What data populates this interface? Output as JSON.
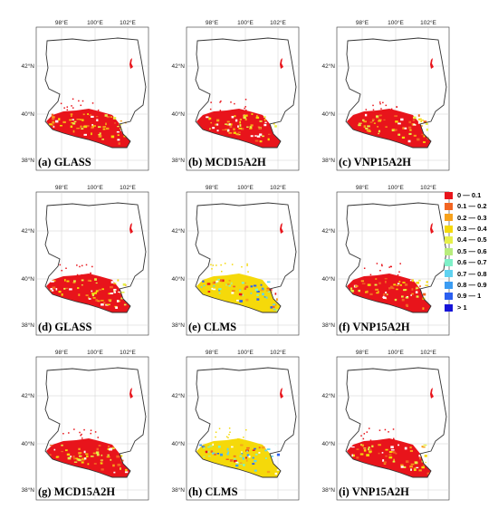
{
  "axes": {
    "lon_ticks": [
      "98°E",
      "100°E",
      "102°E"
    ],
    "lat_ticks": [
      "42°N",
      "40°N",
      "38°N"
    ]
  },
  "panels": [
    {
      "label": "(a) GLASS",
      "dominant": "0 — 0.1"
    },
    {
      "label": "(b) MCD15A2H",
      "dominant": "0 — 0.1"
    },
    {
      "label": "(c) VNP15A2H",
      "dominant": "0 — 0.1"
    },
    {
      "label": "(d) GLASS",
      "dominant": "0 — 0.1"
    },
    {
      "label": "(e) CLMS",
      "dominant": "0.3 — 0.4"
    },
    {
      "label": "(f) VNP15A2H",
      "dominant": "0 — 0.1"
    },
    {
      "label": "(g) MCD15A2H",
      "dominant": "0 — 0.1"
    },
    {
      "label": "(h) CLMS",
      "dominant": "0.3 — 0.4"
    },
    {
      "label": "(i) VNP15A2H",
      "dominant": "0 — 0.1"
    }
  ],
  "legend": [
    {
      "label": "0 — 0.1",
      "color": "#e8141b"
    },
    {
      "label": "0.1 — 0.2",
      "color": "#f26522"
    },
    {
      "label": "0.2 — 0.3",
      "color": "#f7a21b"
    },
    {
      "label": "0.3 — 0.4",
      "color": "#f5d90a"
    },
    {
      "label": "0.4 — 0.5",
      "color": "#e6f04a"
    },
    {
      "label": "0.5 — 0.6",
      "color": "#b8ec7c"
    },
    {
      "label": "0.6 — 0.7",
      "color": "#7ff0c8"
    },
    {
      "label": "0.7 — 0.8",
      "color": "#5fd2f0"
    },
    {
      "label": "0.8 — 0.9",
      "color": "#3c9cf2"
    },
    {
      "label": "0.9 — 1",
      "color": "#2b5ff0"
    },
    {
      "label": "> 1",
      "color": "#1614d8"
    }
  ]
}
